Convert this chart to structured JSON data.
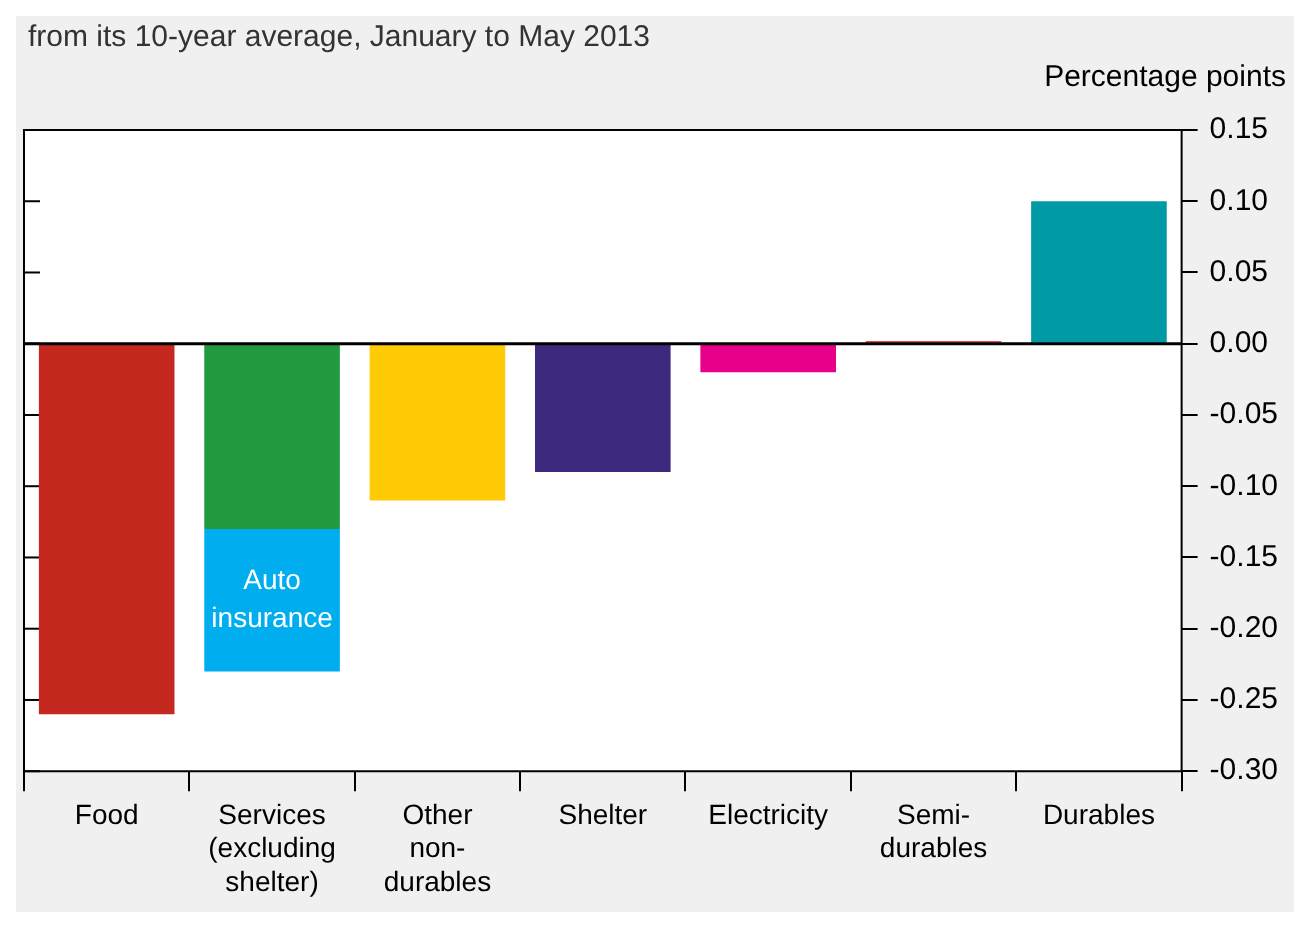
{
  "chart_data": {
    "type": "bar",
    "subtitle": "from its 10-year average, January to May 2013",
    "ylabel": "Percentage points",
    "categories": [
      "Food",
      "Services (excluding shelter)",
      "Other non-durables",
      "Shelter",
      "Electricity",
      "Semi-durables",
      "Durables"
    ],
    "stacked": true,
    "series": [
      {
        "colors": [
          "#c4281f",
          "#239a3f",
          "#ffcb05",
          "#3d2a7f",
          "#e8008b",
          "#e0474c",
          "#009aa6"
        ],
        "values": [
          -0.26,
          -0.13,
          -0.11,
          -0.09,
          -0.02,
          0.002,
          0.1
        ]
      },
      {
        "name": "Auto insurance",
        "color": "#00aeef",
        "values": [
          null,
          -0.1,
          null,
          null,
          null,
          null,
          null
        ]
      }
    ],
    "ylim": [
      -0.3,
      0.15
    ],
    "yticks": [
      {
        "value": -0.3,
        "label": "-0.30"
      },
      {
        "value": -0.25,
        "label": "-0.25"
      },
      {
        "value": -0.2,
        "label": "-0.20"
      },
      {
        "value": -0.15,
        "label": "-0.15"
      },
      {
        "value": -0.1,
        "label": "-0.10"
      },
      {
        "value": -0.05,
        "label": "-0.05"
      },
      {
        "value": 0,
        "label": "0.00"
      },
      {
        "value": 0.05,
        "label": "0.05"
      },
      {
        "value": 0.1,
        "label": "0.10"
      },
      {
        "value": 0.15,
        "label": "0.15"
      }
    ],
    "ref_lines": [
      {
        "axis": "y",
        "value": 0,
        "color": "#000000"
      }
    ],
    "grid": false,
    "legend": false
  }
}
